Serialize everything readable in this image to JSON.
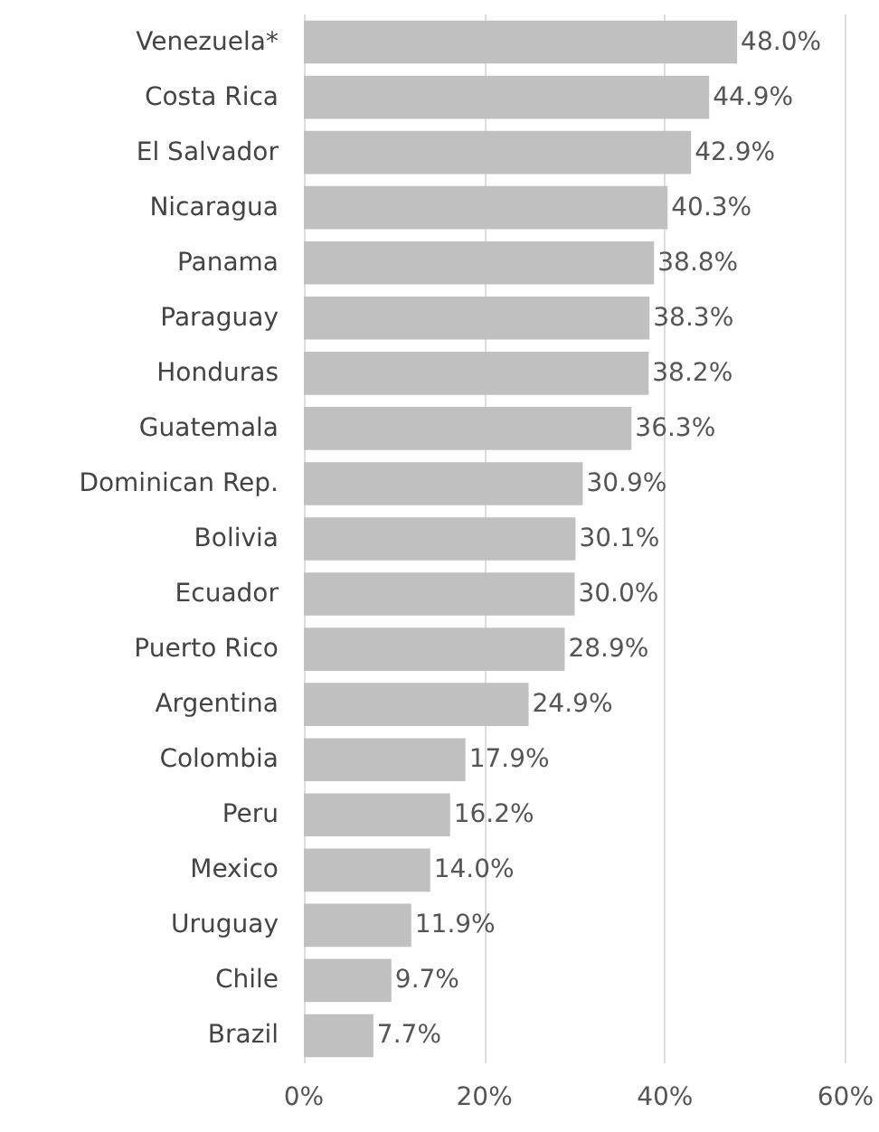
{
  "chart_data": {
    "type": "bar",
    "orientation": "horizontal",
    "categories": [
      "Venezuela*",
      "Costa Rica",
      "El Salvador",
      "Nicaragua",
      "Panama",
      "Paraguay",
      "Honduras",
      "Guatemala",
      "Dominican Rep.",
      "Bolivia",
      "Ecuador",
      "Puerto Rico",
      "Argentina",
      "Colombia",
      "Peru",
      "Mexico",
      "Uruguay",
      "Chile",
      "Brazil"
    ],
    "values": [
      48.0,
      44.9,
      42.9,
      40.3,
      38.8,
      38.3,
      38.2,
      36.3,
      30.9,
      30.1,
      30.0,
      28.9,
      24.9,
      17.9,
      16.2,
      14.0,
      11.9,
      9.7,
      7.7
    ],
    "value_labels": [
      "48.0%",
      "44.9%",
      "42.9%",
      "40.3%",
      "38.8%",
      "38.3%",
      "38.2%",
      "36.3%",
      "30.9%",
      "30.1%",
      "30.0%",
      "28.9%",
      "24.9%",
      "17.9%",
      "16.2%",
      "14.0%",
      "11.9%",
      "9.7%",
      "7.7%"
    ],
    "color": "#c0c0c0",
    "xlim": [
      0,
      60
    ],
    "xticks": [
      {
        "value": 0,
        "label": "0%"
      },
      {
        "value": 20,
        "label": "20%"
      },
      {
        "value": 40,
        "label": "40%"
      },
      {
        "value": 60,
        "label": "60%"
      }
    ],
    "grid": "x"
  }
}
